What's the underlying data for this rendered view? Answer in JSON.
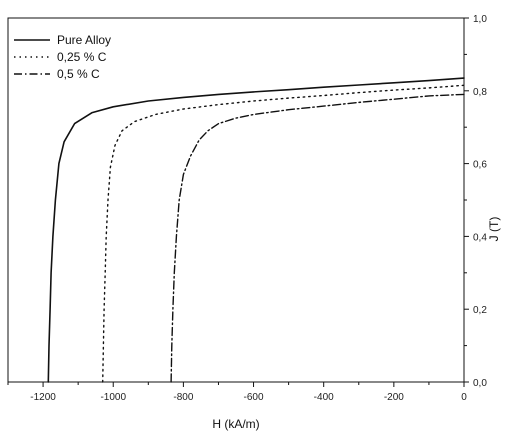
{
  "chart_data": {
    "type": "line",
    "title": "",
    "xlabel": "H (kA/m)",
    "ylabel": "J (T)",
    "xlim": [
      -1300,
      0
    ],
    "ylim": [
      0,
      1.0
    ],
    "x_ticks": [
      -1200,
      -1000,
      -800,
      -600,
      -400,
      -200,
      0
    ],
    "x_tick_labels": [
      "-1200",
      "-1000",
      "-800",
      "-600",
      "-400",
      "-200",
      "0"
    ],
    "y_ticks": [
      0,
      0.2,
      0.4,
      0.6,
      0.8,
      1.0
    ],
    "y_tick_labels": [
      "0,0",
      "0,2",
      "0,4",
      "0,6",
      "0,8",
      "1,0"
    ],
    "y_axis_side": "right",
    "grid": false,
    "legend_position": "top-left",
    "series": [
      {
        "name": "Pure Alloy",
        "style": "solid",
        "points": [
          [
            -1185,
            0.0
          ],
          [
            -1183,
            0.1
          ],
          [
            -1180,
            0.2
          ],
          [
            -1177,
            0.3
          ],
          [
            -1172,
            0.4
          ],
          [
            -1165,
            0.5
          ],
          [
            -1155,
            0.6
          ],
          [
            -1140,
            0.66
          ],
          [
            -1110,
            0.71
          ],
          [
            -1060,
            0.74
          ],
          [
            -1000,
            0.756
          ],
          [
            -900,
            0.772
          ],
          [
            -800,
            0.782
          ],
          [
            -700,
            0.79
          ],
          [
            -600,
            0.797
          ],
          [
            -500,
            0.803
          ],
          [
            -400,
            0.81
          ],
          [
            -300,
            0.816
          ],
          [
            -200,
            0.822
          ],
          [
            -100,
            0.828
          ],
          [
            0,
            0.835
          ]
        ]
      },
      {
        "name": "0,25 % C",
        "style": "dotted",
        "points": [
          [
            -1030,
            0.0
          ],
          [
            -1028,
            0.1
          ],
          [
            -1026,
            0.2
          ],
          [
            -1023,
            0.3
          ],
          [
            -1020,
            0.4
          ],
          [
            -1015,
            0.5
          ],
          [
            -1008,
            0.59
          ],
          [
            -995,
            0.65
          ],
          [
            -975,
            0.69
          ],
          [
            -940,
            0.715
          ],
          [
            -880,
            0.735
          ],
          [
            -800,
            0.75
          ],
          [
            -700,
            0.762
          ],
          [
            -600,
            0.772
          ],
          [
            -500,
            0.78
          ],
          [
            -400,
            0.787
          ],
          [
            -300,
            0.795
          ],
          [
            -200,
            0.802
          ],
          [
            -100,
            0.808
          ],
          [
            0,
            0.815
          ]
        ]
      },
      {
        "name": "0,5 % C",
        "style": "dashdot",
        "points": [
          [
            -835,
            0.0
          ],
          [
            -833,
            0.1
          ],
          [
            -830,
            0.2
          ],
          [
            -826,
            0.3
          ],
          [
            -820,
            0.4
          ],
          [
            -812,
            0.5
          ],
          [
            -800,
            0.57
          ],
          [
            -780,
            0.62
          ],
          [
            -755,
            0.665
          ],
          [
            -730,
            0.69
          ],
          [
            -700,
            0.71
          ],
          [
            -650,
            0.725
          ],
          [
            -600,
            0.735
          ],
          [
            -500,
            0.748
          ],
          [
            -400,
            0.758
          ],
          [
            -300,
            0.768
          ],
          [
            -200,
            0.777
          ],
          [
            -100,
            0.786
          ],
          [
            0,
            0.79
          ]
        ]
      }
    ]
  }
}
